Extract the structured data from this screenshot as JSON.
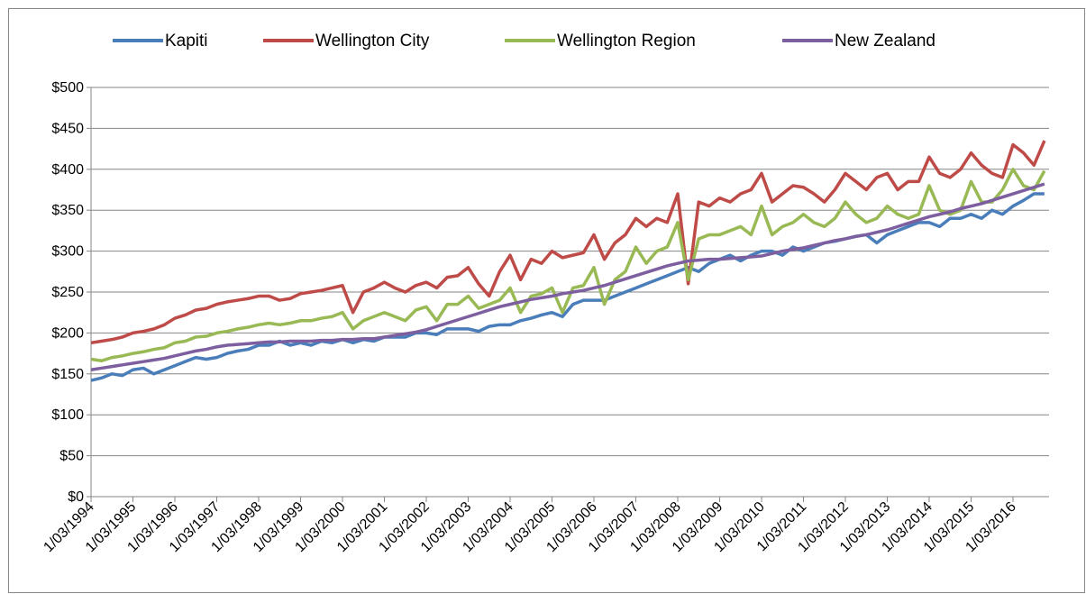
{
  "chart_data": {
    "type": "line",
    "categories": [
      "1/03/1994",
      null,
      null,
      null,
      "1/03/1995",
      null,
      null,
      null,
      "1/03/1996",
      null,
      null,
      null,
      "1/03/1997",
      null,
      null,
      null,
      "1/03/1998",
      null,
      null,
      null,
      "1/03/1999",
      null,
      null,
      null,
      "1/03/2000",
      null,
      null,
      null,
      "1/03/2001",
      null,
      null,
      null,
      "1/03/2002",
      null,
      null,
      null,
      "1/03/2003",
      null,
      null,
      null,
      "1/03/2004",
      null,
      null,
      null,
      "1/03/2005",
      null,
      null,
      null,
      "1/03/2006",
      null,
      null,
      null,
      "1/03/2007",
      null,
      null,
      null,
      "1/03/2008",
      null,
      null,
      null,
      "1/03/2009",
      null,
      null,
      null,
      "1/03/2010",
      null,
      null,
      null,
      "1/03/2011",
      null,
      null,
      null,
      "1/03/2012",
      null,
      null,
      null,
      "1/03/2013",
      null,
      null,
      null,
      "1/03/2014",
      null,
      null,
      null,
      "1/03/2015",
      null,
      null,
      null,
      "1/03/2016",
      null,
      null,
      null
    ],
    "series": [
      {
        "name": "Kapiti",
        "color": "#4a7ebb",
        "values": [
          142,
          145,
          150,
          148,
          155,
          157,
          150,
          155,
          160,
          165,
          170,
          168,
          170,
          175,
          178,
          180,
          185,
          185,
          190,
          185,
          188,
          185,
          190,
          188,
          192,
          188,
          192,
          190,
          195,
          195,
          195,
          200,
          200,
          198,
          205,
          205,
          205,
          202,
          208,
          210,
          210,
          215,
          218,
          222,
          225,
          220,
          235,
          240,
          240,
          240,
          245,
          250,
          255,
          260,
          265,
          270,
          275,
          280,
          275,
          285,
          290,
          295,
          288,
          295,
          300,
          300,
          295,
          305,
          300,
          305,
          310,
          312,
          315,
          318,
          320,
          310,
          320,
          325,
          330,
          335,
          335,
          330,
          340,
          340,
          345,
          340,
          350,
          345,
          355,
          362,
          370,
          370
        ]
      },
      {
        "name": "Wellington City",
        "color": "#be4b48",
        "values": [
          188,
          190,
          192,
          195,
          200,
          202,
          205,
          210,
          218,
          222,
          228,
          230,
          235,
          238,
          240,
          242,
          245,
          245,
          240,
          242,
          248,
          250,
          252,
          255,
          258,
          225,
          250,
          255,
          262,
          255,
          250,
          258,
          262,
          255,
          268,
          270,
          280,
          260,
          245,
          275,
          295,
          265,
          290,
          285,
          300,
          292,
          295,
          298,
          320,
          290,
          310,
          320,
          340,
          330,
          340,
          335,
          370,
          260,
          360,
          355,
          365,
          360,
          370,
          375,
          395,
          360,
          370,
          380,
          378,
          370,
          360,
          375,
          395,
          385,
          375,
          390,
          395,
          375,
          385,
          385,
          415,
          395,
          390,
          400,
          420,
          405,
          395,
          390,
          430,
          420,
          405,
          435
        ]
      },
      {
        "name": "Wellington Region",
        "color": "#98b954",
        "values": [
          168,
          166,
          170,
          172,
          175,
          177,
          180,
          182,
          188,
          190,
          195,
          196,
          200,
          202,
          205,
          207,
          210,
          212,
          210,
          212,
          215,
          215,
          218,
          220,
          225,
          205,
          215,
          220,
          225,
          220,
          215,
          228,
          232,
          215,
          235,
          235,
          245,
          230,
          235,
          240,
          255,
          225,
          245,
          248,
          255,
          225,
          255,
          258,
          280,
          235,
          265,
          275,
          305,
          285,
          300,
          305,
          335,
          265,
          315,
          320,
          320,
          325,
          330,
          320,
          355,
          320,
          330,
          335,
          345,
          335,
          330,
          340,
          360,
          345,
          335,
          340,
          355,
          345,
          340,
          345,
          380,
          350,
          345,
          350,
          385,
          360,
          360,
          375,
          400,
          380,
          375,
          398
        ]
      },
      {
        "name": "New Zealand",
        "color": "#7d5fa0",
        "values": [
          155,
          157,
          159,
          161,
          163,
          165,
          167,
          169,
          172,
          175,
          178,
          180,
          183,
          185,
          186,
          187,
          188,
          189,
          189,
          190,
          190,
          190,
          191,
          191,
          192,
          192,
          193,
          193,
          195,
          197,
          199,
          201,
          204,
          208,
          212,
          216,
          220,
          224,
          228,
          232,
          235,
          238,
          241,
          243,
          245,
          248,
          250,
          252,
          255,
          258,
          262,
          266,
          270,
          274,
          278,
          282,
          285,
          288,
          289,
          290,
          290,
          291,
          292,
          293,
          294,
          297,
          300,
          302,
          304,
          307,
          310,
          313,
          315,
          318,
          320,
          323,
          326,
          330,
          334,
          338,
          342,
          345,
          348,
          352,
          355,
          358,
          362,
          366,
          370,
          374,
          378,
          382
        ]
      }
    ],
    "ylim": [
      0,
      500
    ],
    "yticks": [
      {
        "value": 0,
        "label": "$0"
      },
      {
        "value": 50,
        "label": "$50"
      },
      {
        "value": 100,
        "label": "$100"
      },
      {
        "value": 150,
        "label": "$150"
      },
      {
        "value": 200,
        "label": "$200"
      },
      {
        "value": 250,
        "label": "$250"
      },
      {
        "value": 300,
        "label": "$300"
      },
      {
        "value": 350,
        "label": "$350"
      },
      {
        "value": 400,
        "label": "$400"
      },
      {
        "value": 450,
        "label": "$450"
      },
      {
        "value": 500,
        "label": "$500"
      }
    ],
    "grid": true,
    "legend": "top"
  }
}
